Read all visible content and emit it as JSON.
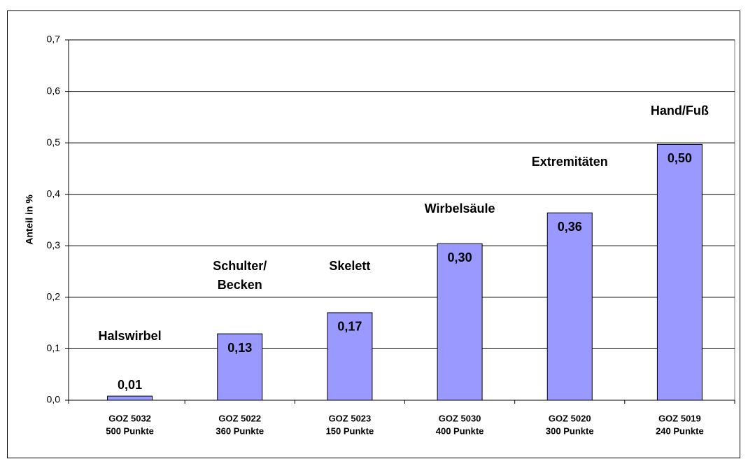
{
  "chart_data": {
    "type": "bar",
    "y_label": "Anteil in %",
    "categories": [
      "GOZ 5032",
      "GOZ 5022",
      "GOZ 5023",
      "GOZ 5030",
      "GOZ 5020",
      "GOZ 5019"
    ],
    "category_points": [
      "500 Punkte",
      "360 Punkte",
      "150 Punkte",
      "400 Punkte",
      "300 Punkte",
      "240 Punkte"
    ],
    "values": [
      0.008,
      0.129,
      0.17,
      0.304,
      0.364,
      0.497
    ],
    "value_labels": [
      "0,01",
      "0,13",
      "0,17",
      "0,30",
      "0,36",
      "0,50"
    ],
    "annotations": [
      [
        "Halswirbel"
      ],
      [
        "Schulter/",
        "Becken"
      ],
      [
        "Skelett"
      ],
      [
        "Wirbelsäule"
      ],
      [
        "Extremitäten"
      ],
      [
        "Hand/Fuß"
      ]
    ],
    "color": "#9999ff",
    "ylim": [
      0,
      0.7
    ],
    "yticks": [
      {
        "value": 0,
        "label": "0,0"
      },
      {
        "value": 0.1,
        "label": "0,1"
      },
      {
        "value": 0.2,
        "label": "0,2"
      },
      {
        "value": 0.3,
        "label": "0,3"
      },
      {
        "value": 0.4,
        "label": "0,4"
      },
      {
        "value": 0.5,
        "label": "0,5"
      },
      {
        "value": 0.6,
        "label": "0,6"
      },
      {
        "value": 0.7,
        "label": "0,7"
      }
    ],
    "grid": true
  }
}
